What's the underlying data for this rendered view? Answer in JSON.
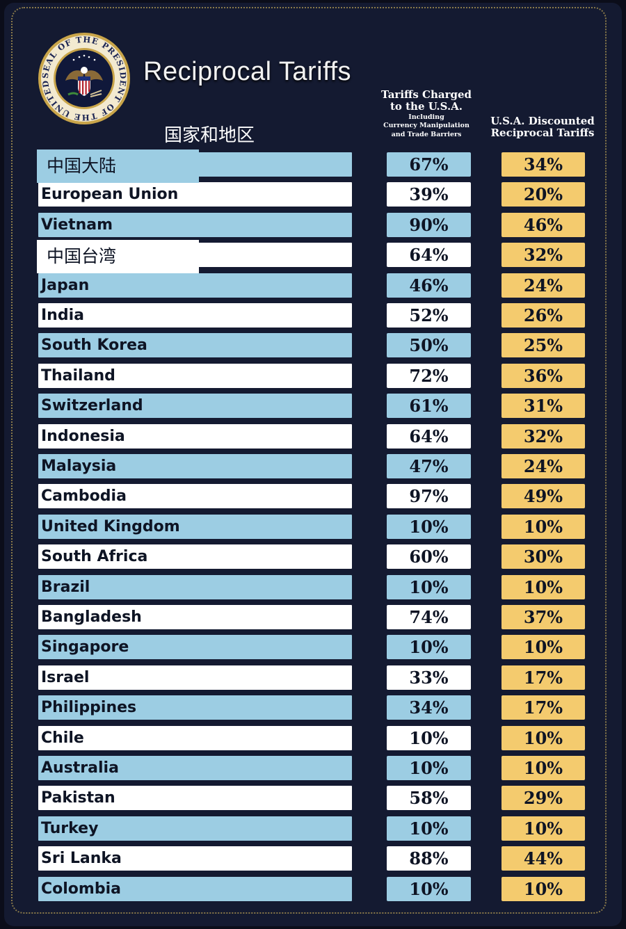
{
  "header": {
    "seal_text": "SEAL OF THE PRESIDENT OF THE UNITED STATES",
    "title": "Reciprocal Tariffs",
    "country_label_cn": "国家和地区",
    "charged": {
      "line1": "Tariffs Charged",
      "line2": "to the U.S.A.",
      "line3": "Including",
      "line4": "Currency Manipulation",
      "line5": "and Trade Barriers"
    },
    "discount": {
      "line1": "U.S.A. Discounted",
      "line2": "Reciprocal Tariffs"
    }
  },
  "colors": {
    "background": "#141a31",
    "row_blue": "#9ccde3",
    "row_white": "#ffffff",
    "discount_gold": "#f4cb6e"
  },
  "rows": [
    {
      "country": "中国大陆",
      "charged": "67%",
      "discounted": "34%"
    },
    {
      "country": "European Union",
      "charged": "39%",
      "discounted": "20%"
    },
    {
      "country": "Vietnam",
      "charged": "90%",
      "discounted": "46%"
    },
    {
      "country": "中国台湾",
      "charged": "64%",
      "discounted": "32%"
    },
    {
      "country": "Japan",
      "charged": "46%",
      "discounted": "24%"
    },
    {
      "country": "India",
      "charged": "52%",
      "discounted": "26%"
    },
    {
      "country": "South Korea",
      "charged": "50%",
      "discounted": "25%"
    },
    {
      "country": "Thailand",
      "charged": "72%",
      "discounted": "36%"
    },
    {
      "country": "Switzerland",
      "charged": "61%",
      "discounted": "31%"
    },
    {
      "country": "Indonesia",
      "charged": "64%",
      "discounted": "32%"
    },
    {
      "country": "Malaysia",
      "charged": "47%",
      "discounted": "24%"
    },
    {
      "country": "Cambodia",
      "charged": "97%",
      "discounted": "49%"
    },
    {
      "country": "United Kingdom",
      "charged": "10%",
      "discounted": "10%"
    },
    {
      "country": "South Africa",
      "charged": "60%",
      "discounted": "30%"
    },
    {
      "country": "Brazil",
      "charged": "10%",
      "discounted": "10%"
    },
    {
      "country": "Bangladesh",
      "charged": "74%",
      "discounted": "37%"
    },
    {
      "country": "Singapore",
      "charged": "10%",
      "discounted": "10%"
    },
    {
      "country": "Israel",
      "charged": "33%",
      "discounted": "17%"
    },
    {
      "country": "Philippines",
      "charged": "34%",
      "discounted": "17%"
    },
    {
      "country": "Chile",
      "charged": "10%",
      "discounted": "10%"
    },
    {
      "country": "Australia",
      "charged": "10%",
      "discounted": "10%"
    },
    {
      "country": "Pakistan",
      "charged": "58%",
      "discounted": "29%"
    },
    {
      "country": "Turkey",
      "charged": "10%",
      "discounted": "10%"
    },
    {
      "country": "Sri Lanka",
      "charged": "88%",
      "discounted": "44%"
    },
    {
      "country": "Colombia",
      "charged": "10%",
      "discounted": "10%"
    }
  ]
}
